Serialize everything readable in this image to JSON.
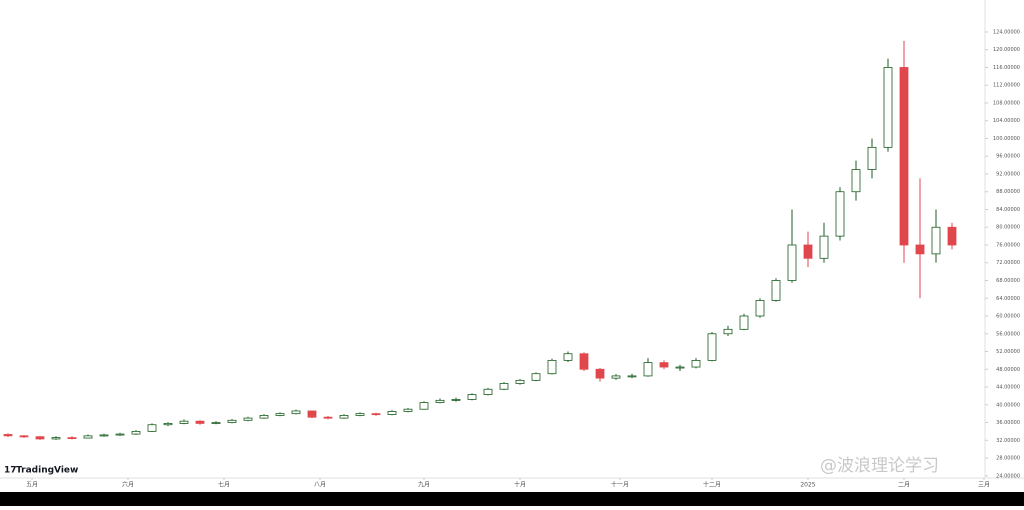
{
  "chart_data": {
    "type": "candlestick",
    "ohlc": [
      [
        33.3,
        33.6,
        32.7,
        33
      ],
      [
        33,
        33.2,
        32.5,
        32.8
      ],
      [
        32.8,
        33,
        32.1,
        32.3
      ],
      [
        32.3,
        32.9,
        32.1,
        32.6
      ],
      [
        32.6,
        32.9,
        32.2,
        32.5
      ],
      [
        32.5,
        33.3,
        32.4,
        33
      ],
      [
        33,
        33.5,
        32.8,
        33.2
      ],
      [
        33.2,
        33.7,
        33,
        33.4
      ],
      [
        33.4,
        34.3,
        33.2,
        34
      ],
      [
        34,
        35.8,
        33.9,
        35.5
      ],
      [
        35.5,
        36.1,
        35.2,
        35.8
      ],
      [
        35.8,
        36.7,
        35.6,
        36.3
      ],
      [
        36.3,
        36.5,
        35.5,
        35.8
      ],
      [
        35.8,
        36.3,
        35.6,
        36
      ],
      [
        36,
        36.8,
        35.8,
        36.5
      ],
      [
        36.5,
        37.3,
        36.3,
        37
      ],
      [
        37,
        37.9,
        36.8,
        37.6
      ],
      [
        37.6,
        38.3,
        37.4,
        38
      ],
      [
        38,
        38.9,
        37.8,
        38.6
      ],
      [
        38.6,
        38.7,
        37,
        37.2
      ],
      [
        37.2,
        37.5,
        36.7,
        37
      ],
      [
        37,
        37.9,
        36.8,
        37.6
      ],
      [
        37.6,
        38.3,
        37.4,
        38
      ],
      [
        38,
        38.2,
        37.5,
        37.8
      ],
      [
        37.8,
        38.8,
        37.6,
        38.5
      ],
      [
        38.5,
        39.3,
        38.3,
        39
      ],
      [
        39,
        40.8,
        38.9,
        40.5
      ],
      [
        40.5,
        41.4,
        40.3,
        41
      ],
      [
        41,
        41.6,
        40.7,
        41.2
      ],
      [
        41.2,
        42.6,
        41,
        42.3
      ],
      [
        42.3,
        43.8,
        42.1,
        43.5
      ],
      [
        43.5,
        45.1,
        43.3,
        44.8
      ],
      [
        44.8,
        45.8,
        44.5,
        45.5
      ],
      [
        45.5,
        47.3,
        45.3,
        47
      ],
      [
        47,
        50.4,
        46.8,
        50
      ],
      [
        50,
        52,
        49.6,
        51.5
      ],
      [
        51.5,
        51.8,
        47.6,
        48
      ],
      [
        48,
        48.3,
        45.2,
        46
      ],
      [
        46,
        46.9,
        45.6,
        46.5
      ],
      [
        46.5,
        47,
        46,
        46.5
      ],
      [
        46.5,
        50.5,
        46.3,
        49.5
      ],
      [
        49.5,
        50,
        48,
        48.5
      ],
      [
        48.5,
        49,
        47.6,
        48.5
      ],
      [
        48.5,
        50.5,
        48.2,
        50
      ],
      [
        50,
        56.4,
        49.8,
        56
      ],
      [
        56,
        57.8,
        55.5,
        57
      ],
      [
        57,
        60.5,
        56.8,
        60
      ],
      [
        60,
        64,
        59.6,
        63.5
      ],
      [
        63.5,
        68.5,
        63.2,
        68
      ],
      [
        68,
        84,
        67.5,
        76
      ],
      [
        76,
        79,
        71,
        73
      ],
      [
        73,
        81,
        72,
        78
      ],
      [
        78,
        89,
        77,
        88
      ],
      [
        88,
        95,
        86,
        93
      ],
      [
        93,
        100,
        91,
        98
      ],
      [
        98,
        118,
        97,
        116
      ],
      [
        116,
        122,
        72,
        76
      ],
      [
        76,
        91,
        64,
        74
      ],
      [
        74,
        84,
        72,
        80
      ],
      [
        80,
        81,
        75,
        76
      ]
    ],
    "up_color": "#1b5e20",
    "down_color": "#e0474c",
    "xlim": [
      -0.5,
      61
    ],
    "xticks": [
      {
        "value": 1.5,
        "label": "五月"
      },
      {
        "value": 7.5,
        "label": "六月"
      },
      {
        "value": 13.5,
        "label": "七月"
      },
      {
        "value": 19.5,
        "label": "八月"
      },
      {
        "value": 26,
        "label": "九月"
      },
      {
        "value": 32,
        "label": "十月"
      },
      {
        "value": 38.25,
        "label": "十一月"
      },
      {
        "value": 44,
        "label": "十二月"
      },
      {
        "value": 50,
        "label": "2025"
      },
      {
        "value": 56,
        "label": "二月"
      },
      {
        "value": 61,
        "label": "三月"
      }
    ],
    "ylim": [
      23.5,
      131.2
    ],
    "yticks": [
      {
        "value": 24,
        "label": "24.00000"
      },
      {
        "value": 28,
        "label": "28.00000"
      },
      {
        "value": 32,
        "label": "32.00000"
      },
      {
        "value": 36,
        "label": "36.00000"
      },
      {
        "value": 40,
        "label": "40.00000"
      },
      {
        "value": 44,
        "label": "44.00000"
      },
      {
        "value": 48,
        "label": "48.00000"
      },
      {
        "value": 52,
        "label": "52.00000"
      },
      {
        "value": 56,
        "label": "56.00000"
      },
      {
        "value": 60,
        "label": "60.00000"
      },
      {
        "value": 64,
        "label": "64.00000"
      },
      {
        "value": 68,
        "label": "68.00000"
      },
      {
        "value": 72,
        "label": "72.00000"
      },
      {
        "value": 76,
        "label": "76.00000"
      },
      {
        "value": 80,
        "label": "80.00000"
      },
      {
        "value": 84,
        "label": "84.00000"
      },
      {
        "value": 88,
        "label": "88.00000"
      },
      {
        "value": 92,
        "label": "92.00000"
      },
      {
        "value": 96,
        "label": "96.00000"
      },
      {
        "value": 100,
        "label": "100.00000"
      },
      {
        "value": 104,
        "label": "104.00000"
      },
      {
        "value": 108,
        "label": "108.00000"
      },
      {
        "value": 112,
        "label": "112.00000"
      },
      {
        "value": 116,
        "label": "116.00000"
      },
      {
        "value": 120,
        "label": "120.00000"
      },
      {
        "value": 124,
        "label": "124.00000"
      }
    ],
    "grid": false,
    "logo": "TradingView",
    "watermark": "@波浪理论学习"
  }
}
